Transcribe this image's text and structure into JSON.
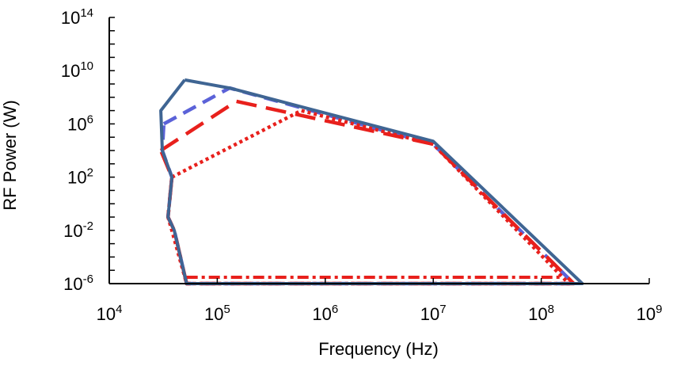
{
  "chart_data": {
    "type": "line",
    "title": "",
    "xlabel": "Frequency (Hz)",
    "ylabel": "RF Power (W)",
    "x_scale": "log",
    "y_scale": "log",
    "xlim": [
      10000,
      1000000000
    ],
    "ylim": [
      1e-06,
      100000000000000
    ],
    "x_ticks": [
      {
        "base": "10",
        "exp": "4"
      },
      {
        "base": "10",
        "exp": "5"
      },
      {
        "base": "10",
        "exp": "6"
      },
      {
        "base": "10",
        "exp": "7"
      },
      {
        "base": "10",
        "exp": "8"
      },
      {
        "base": "10",
        "exp": "9"
      }
    ],
    "y_ticks": [
      {
        "base": "10",
        "exp": "-6"
      },
      {
        "base": "10",
        "exp": "-2"
      },
      {
        "base": "10",
        "exp": "2"
      },
      {
        "base": "10",
        "exp": "6"
      },
      {
        "base": "10",
        "exp": "10"
      },
      {
        "base": "10",
        "exp": "14"
      }
    ],
    "grid": false,
    "legend": "none",
    "series": [
      {
        "style": "solid",
        "color": "#3f6593",
        "x": [
          50000,
          130000,
          10000000,
          240000000,
          52000000,
          52000,
          40000,
          35000,
          38000,
          31000,
          30000,
          50000
        ],
        "y": [
          2000000000,
          500000000,
          50000,
          1e-06,
          1e-06,
          1e-06,
          0.01,
          0.1,
          100,
          10000,
          10000000,
          2000000000
        ]
      },
      {
        "style": "dashed",
        "color": "#5b62d8",
        "x": [
          32000,
          130000,
          10000000,
          200000000,
          52000,
          40000,
          35000,
          38000,
          31000,
          32000
        ],
        "y": [
          1000000,
          500000000,
          30000,
          1e-06,
          1e-06,
          0.01,
          0.1,
          100,
          10000,
          1000000
        ]
      },
      {
        "style": "long-dashed",
        "color": "#e8201c",
        "x": [
          30000,
          150000,
          10000000,
          200000000,
          52000,
          40000,
          35000,
          38000,
          30000
        ],
        "y": [
          10000,
          50000000,
          30000,
          1e-06,
          1e-06,
          0.01,
          0.1,
          100,
          10000
        ]
      },
      {
        "style": "dotted",
        "color": "#e8201c",
        "x": [
          38000,
          600000,
          10000000,
          180000000,
          52000,
          38000,
          35000,
          38000
        ],
        "y": [
          100,
          10000000,
          30000,
          1e-06,
          1e-06,
          0.01,
          0.1,
          100
        ]
      },
      {
        "style": "dash-dot",
        "color": "#e8201c",
        "x": [
          52000,
          160000000
        ],
        "y": [
          3e-06,
          3e-06
        ]
      }
    ]
  }
}
